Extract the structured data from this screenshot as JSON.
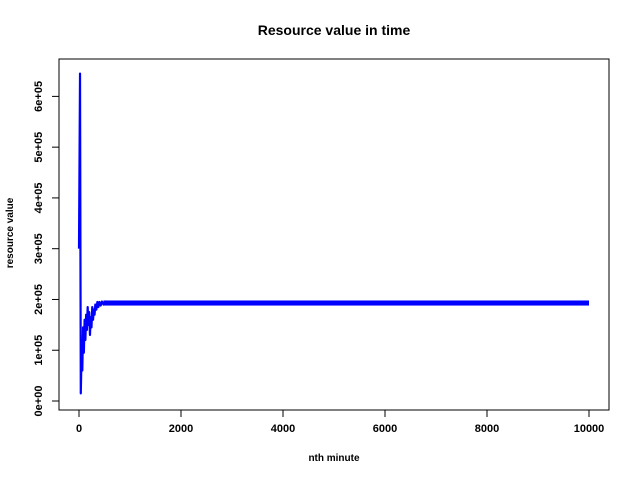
{
  "chart_data": {
    "type": "line",
    "title": "Resource value in time",
    "xlabel": "nth minute",
    "ylabel": "resource value",
    "xlim": [
      0,
      10000
    ],
    "ylim": [
      0,
      650000
    ],
    "x_ticks": [
      0,
      2000,
      4000,
      6000,
      8000,
      10000
    ],
    "x_tick_labels": [
      "0",
      "2000",
      "4000",
      "6000",
      "8000",
      "10000"
    ],
    "y_ticks": [
      0,
      100000,
      200000,
      300000,
      400000,
      500000,
      600000
    ],
    "y_tick_labels": [
      "0e+00",
      "1e+05",
      "2e+05",
      "3e+05",
      "4e+05",
      "5e+05",
      "6e+05"
    ],
    "grid": false,
    "series": [
      {
        "color": "#0000ff",
        "x": [
          0,
          20,
          35,
          50,
          65,
          80,
          95,
          110,
          125,
          140,
          155,
          170,
          185,
          200,
          215,
          230,
          245,
          260,
          275,
          290,
          305,
          320,
          340,
          360,
          380,
          400,
          425,
          450,
          480,
          510,
          600,
          800,
          1000,
          2000,
          3000,
          4000,
          5000,
          6000,
          7000,
          8000,
          9000,
          10000
        ],
        "values": [
          300000,
          645000,
          15000,
          90000,
          60000,
          145000,
          95000,
          160000,
          120000,
          170000,
          140000,
          185000,
          150000,
          175000,
          130000,
          165000,
          145000,
          185000,
          160000,
          180000,
          170000,
          190000,
          180000,
          195000,
          185000,
          195000,
          188000,
          196000,
          190000,
          196000,
          193000,
          193000,
          193000,
          193000,
          193000,
          193000,
          193000,
          193000,
          193000,
          193000,
          193000,
          193000
        ],
        "band": {
          "x_start": 480,
          "x_end": 10000,
          "low": 188000,
          "high": 198000
        }
      }
    ]
  }
}
